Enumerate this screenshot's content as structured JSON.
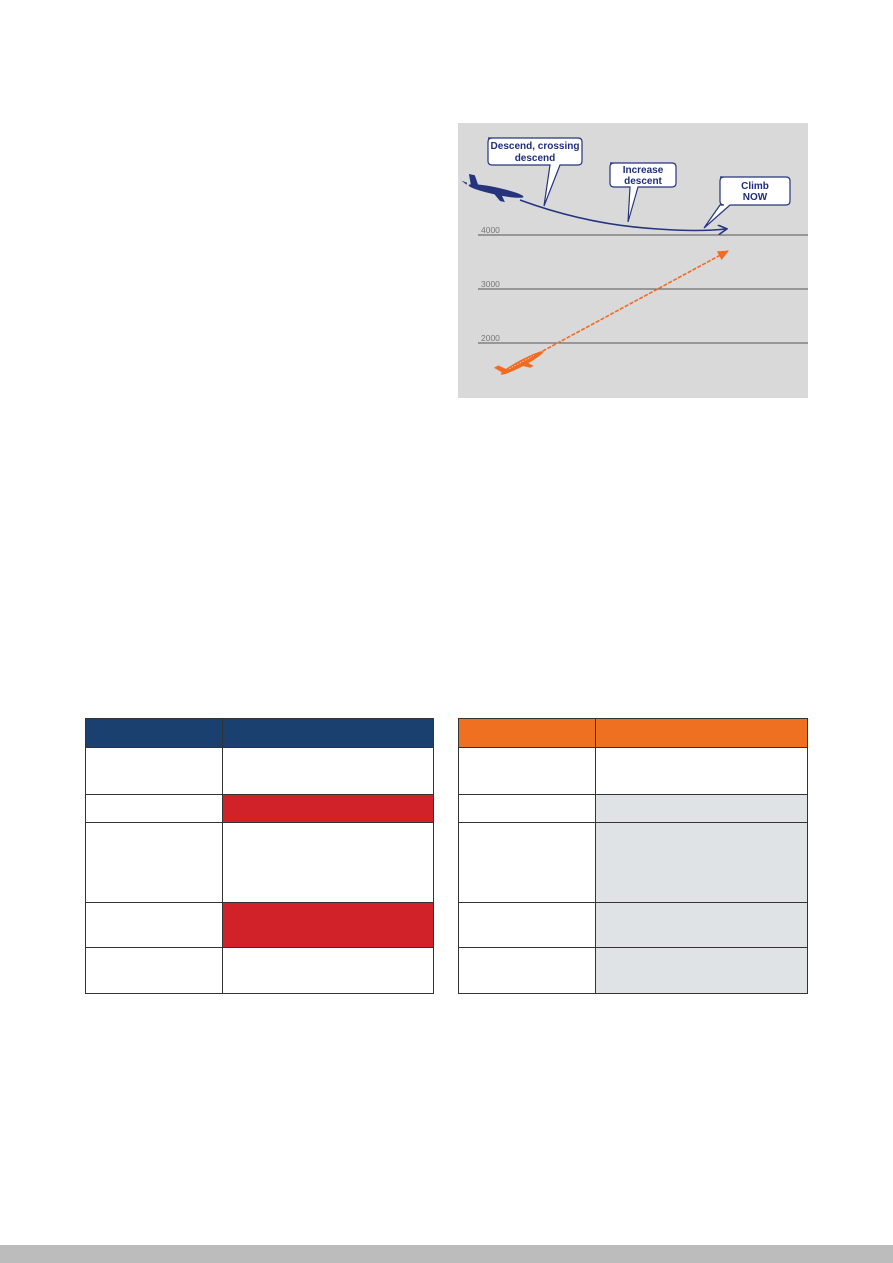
{
  "figure": {
    "callouts": [
      {
        "lines": [
          "Descend, crossing",
          "descend"
        ]
      },
      {
        "lines": [
          "Increase",
          "descent"
        ]
      },
      {
        "lines": [
          "Climb",
          "NOW"
        ]
      }
    ],
    "altitudes": [
      "4000",
      "3000",
      "2000"
    ],
    "colors": {
      "background": "#d9d9d9",
      "blue_aircraft": "#26347e",
      "orange_aircraft": "#f26b22",
      "level_lines": "#555555"
    }
  },
  "tables": {
    "left": {
      "header_color": "#1a4070",
      "highlight_color": "#d02228",
      "rows": 5
    },
    "right": {
      "header_color": "#f07021",
      "highlight_color": "#e0e3e5",
      "rows": 5
    }
  }
}
